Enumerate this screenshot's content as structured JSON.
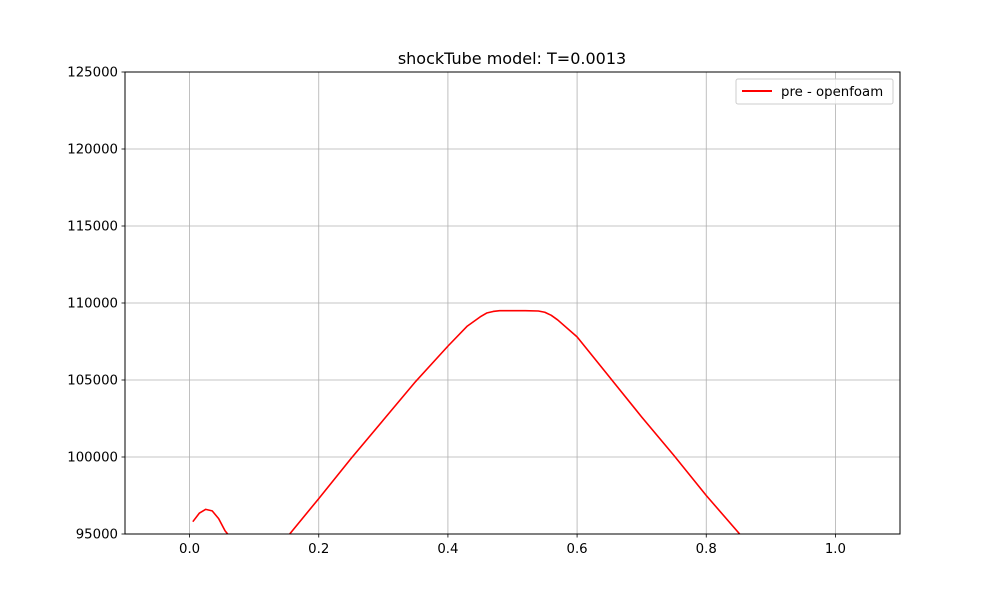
{
  "chart_data": {
    "type": "line",
    "title": "shockTube model: T=0.0013",
    "xlabel": "",
    "ylabel": "",
    "xlim": [
      -0.1,
      1.1
    ],
    "ylim": [
      95000,
      125000
    ],
    "xticks": [
      0.0,
      0.2,
      0.4,
      0.6,
      0.8,
      1.0
    ],
    "xtick_labels": [
      "0.0",
      "0.2",
      "0.4",
      "0.6",
      "0.8",
      "1.0"
    ],
    "yticks": [
      95000,
      100000,
      105000,
      110000,
      115000,
      120000,
      125000
    ],
    "ytick_labels": [
      "95000",
      "100000",
      "105000",
      "110000",
      "115000",
      "120000",
      "125000"
    ],
    "grid": true,
    "legend_position": "top-right",
    "series": [
      {
        "name": "pre - openfoam",
        "color": "#ff0000",
        "x": [
          0.005,
          0.015,
          0.025,
          0.035,
          0.045,
          0.055,
          0.065,
          0.08,
          0.1,
          0.12,
          0.14,
          0.155,
          0.2,
          0.25,
          0.3,
          0.35,
          0.4,
          0.43,
          0.45,
          0.46,
          0.47,
          0.48,
          0.5,
          0.52,
          0.54,
          0.55,
          0.56,
          0.57,
          0.6,
          0.65,
          0.7,
          0.75,
          0.8,
          0.86
        ],
        "y": [
          95800,
          96350,
          96600,
          96500,
          96000,
          95200,
          94700,
          94200,
          94000,
          94000,
          94300,
          95000,
          97300,
          99900,
          102400,
          104900,
          107200,
          108500,
          109100,
          109350,
          109450,
          109500,
          109500,
          109500,
          109480,
          109400,
          109200,
          108900,
          107800,
          105200,
          102600,
          100100,
          97500,
          94600
        ]
      }
    ]
  }
}
